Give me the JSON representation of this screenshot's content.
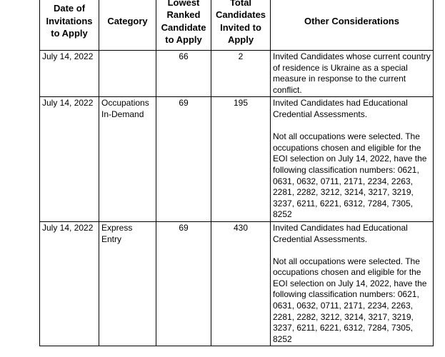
{
  "table": {
    "headers": [
      "Date of Invitations to Apply",
      "Category",
      "Lowest Ranked Candidate to Apply",
      "Total Candidates Invited to Apply",
      "Other Considerations"
    ],
    "rows": [
      {
        "date": "July 14, 2022",
        "lowest": 66,
        "total": 2,
        "considerations": [
          "Invited Candidates whose current country of residence is Ukraine as a special measure in response to the current conflict."
        ]
      },
      {
        "date": "July 14, 2022",
        "category": "Occupations In-Demand",
        "lowest": 69,
        "total": 195,
        "considerations": [
          "Invited Candidates had Educational Credential Assessments.",
          "Not all occupations were selected. The occupations chosen and eligible for the EOI selection on July 14, 2022, have the following classification numbers: 0621, 0631, 0632, 0711, 2171, 2234, 2263, 2281, 2282, 3212, 3214, 3217, 3219, 3237, 6211, 6221, 6312, 7284, 7305, 8252"
        ]
      },
      {
        "date": "July 14, 2022",
        "category": "Express Entry",
        "lowest": 69,
        "total": 430,
        "considerations": [
          "Invited Candidates had Educational Credential Assessments.",
          "Not all occupations were selected. The occupations chosen and eligible for the EOI selection on July 14, 2022, have the following classification numbers: 0621, 0631, 0632, 0711, 2171, 2234, 2263, 2281, 2282, 3212, 3214, 3217, 3219, 3237, 6211, 6221, 6312, 7284, 7305, 8252"
        ]
      }
    ]
  }
}
